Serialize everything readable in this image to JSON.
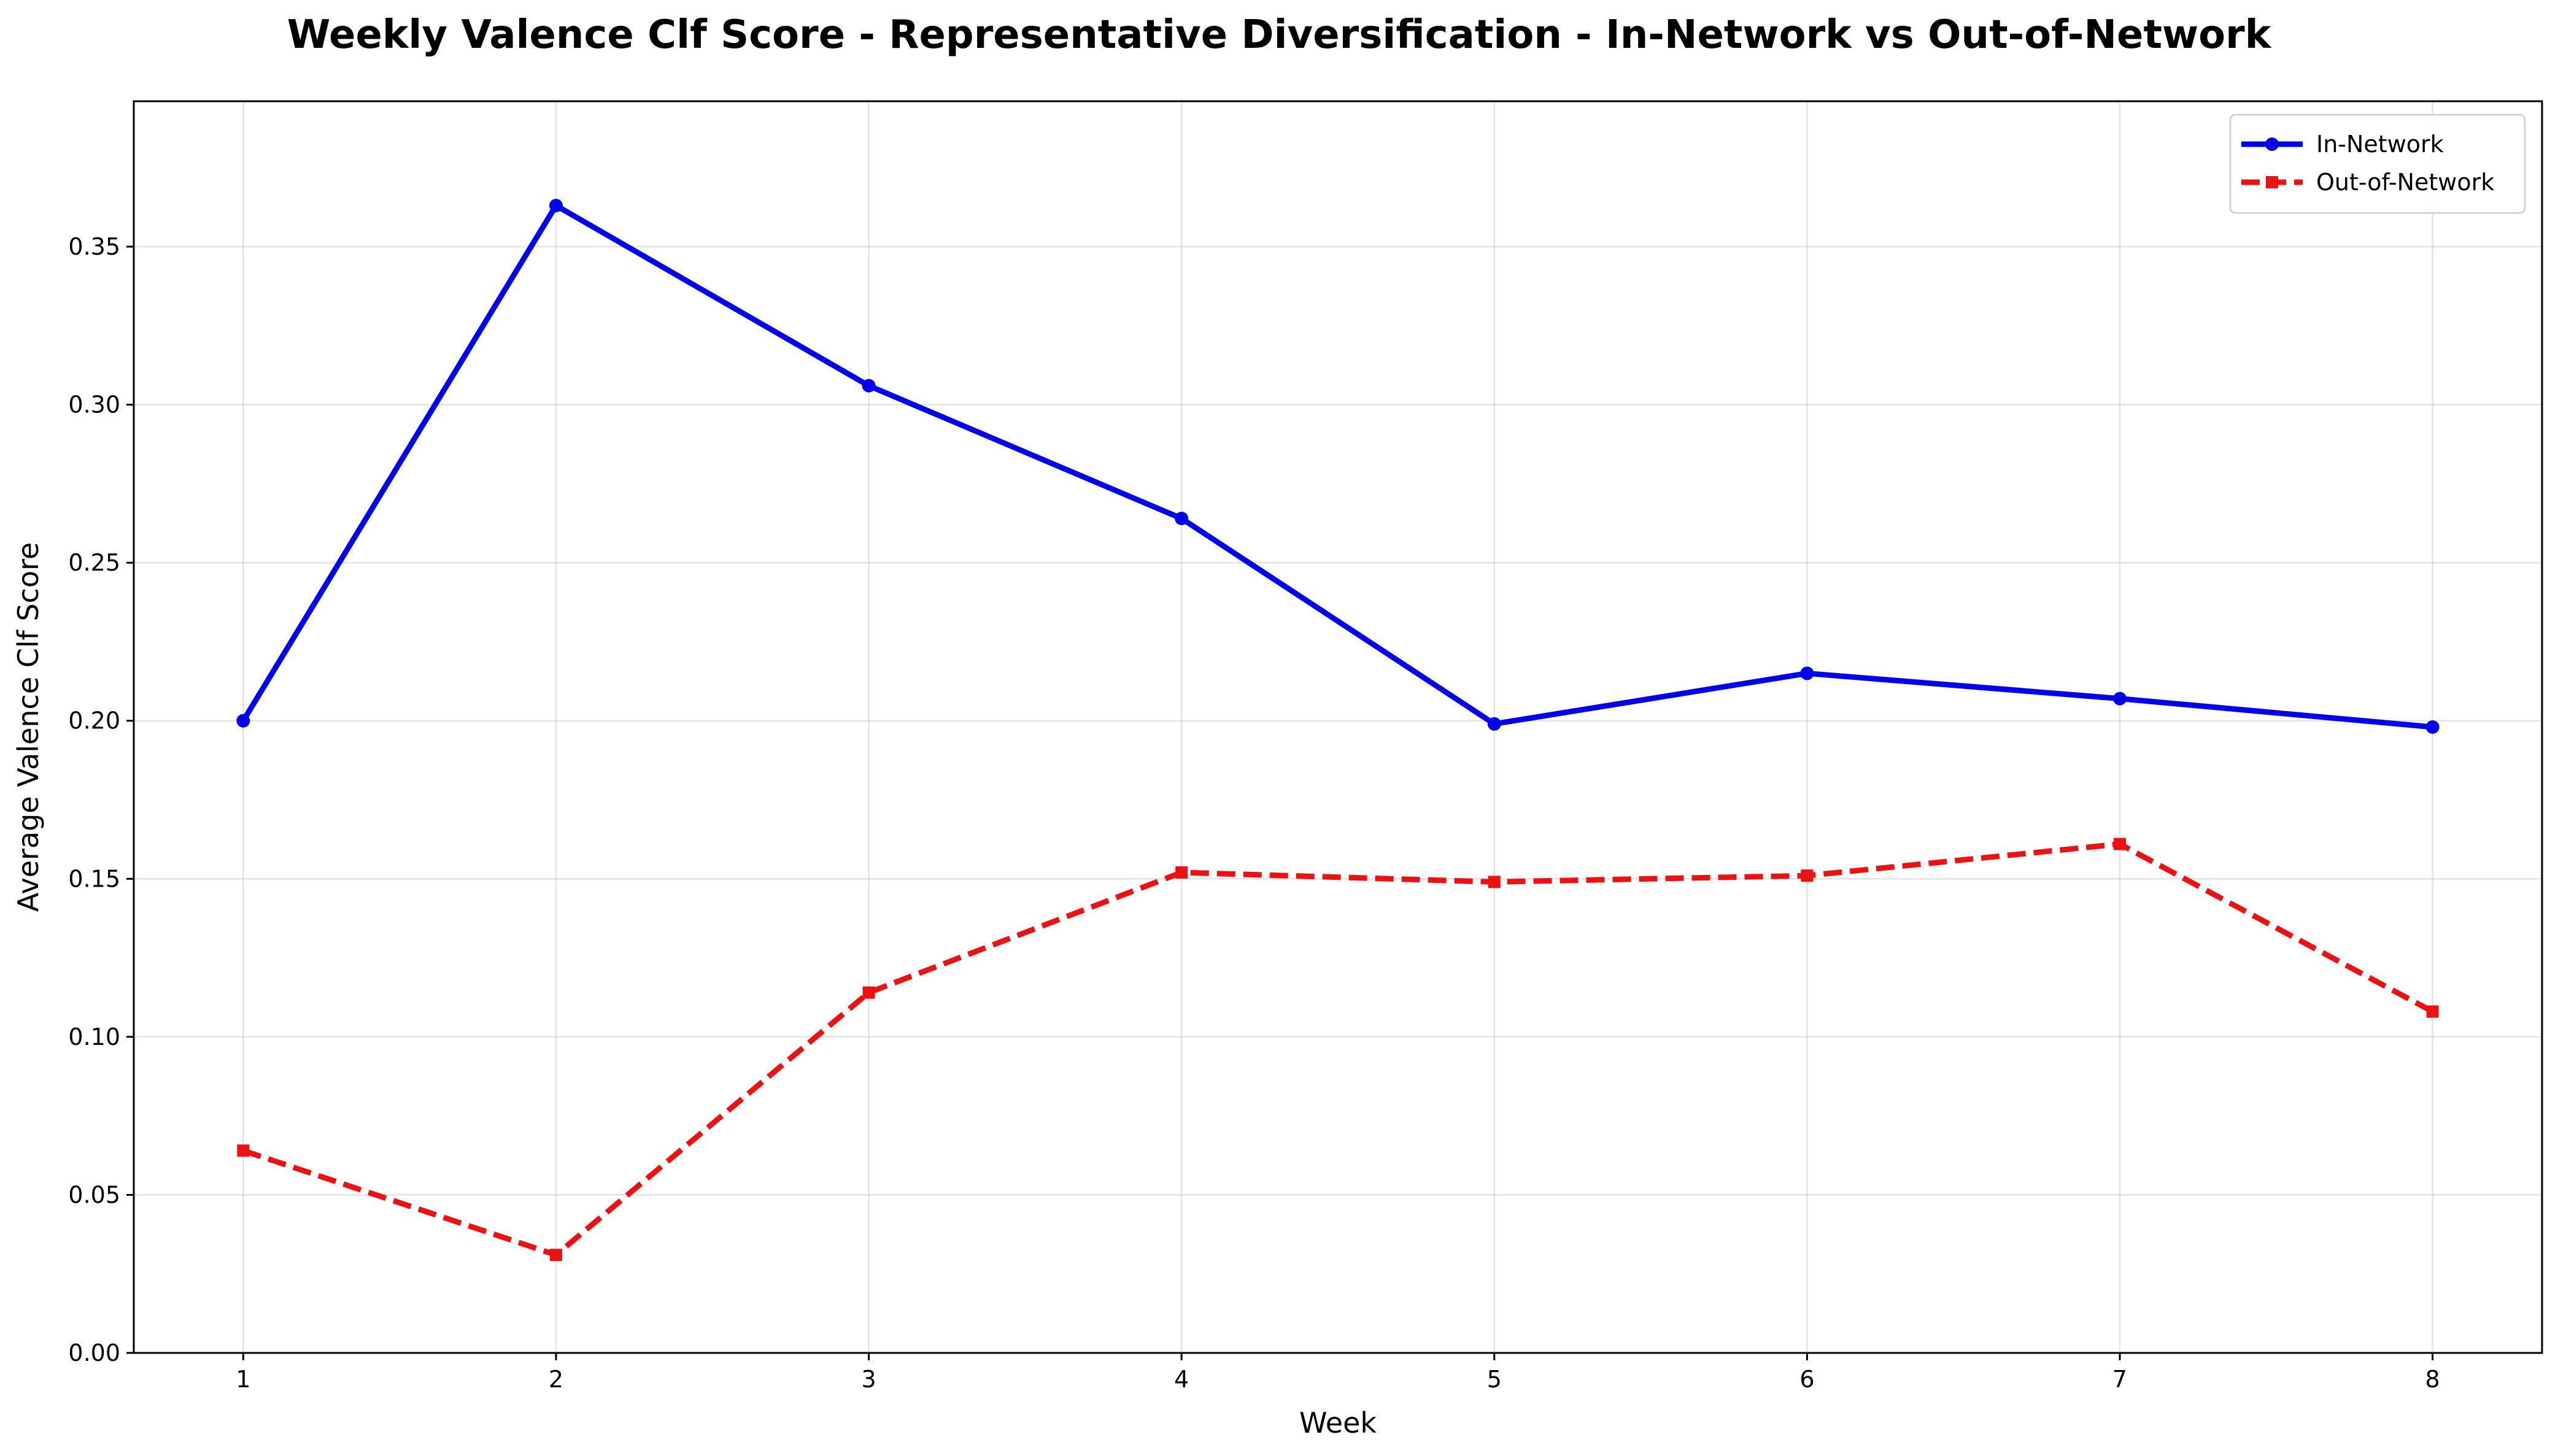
{
  "chart_data": {
    "type": "line",
    "title": "Weekly Valence Clf Score - Representative Diversification - In-Network vs Out-of-Network",
    "xlabel": "Week",
    "ylabel": "Average Valence Clf Score",
    "x": [
      1,
      2,
      3,
      4,
      5,
      6,
      7,
      8
    ],
    "x_tick_labels": [
      "1",
      "2",
      "3",
      "4",
      "5",
      "6",
      "7",
      "8"
    ],
    "xlim": [
      0.65,
      8.35
    ],
    "ylim": [
      0.0,
      0.396
    ],
    "y_ticks": [
      0.0,
      0.05,
      0.1,
      0.15,
      0.2,
      0.25,
      0.3,
      0.35
    ],
    "y_tick_labels": [
      "0.00",
      "0.05",
      "0.10",
      "0.15",
      "0.20",
      "0.25",
      "0.30",
      "0.35"
    ],
    "grid": true,
    "legend_position": "top-right",
    "series": [
      {
        "name": "In-Network",
        "color": "#0000ee",
        "line_style": "solid",
        "marker": "circle",
        "values": [
          0.2,
          0.363,
          0.306,
          0.264,
          0.199,
          0.215,
          0.207,
          0.198
        ]
      },
      {
        "name": "Out-of-Network",
        "color": "#ee1111",
        "line_style": "dashed",
        "marker": "square",
        "values": [
          0.064,
          0.031,
          0.114,
          0.152,
          0.149,
          0.151,
          0.161,
          0.108
        ]
      }
    ]
  }
}
